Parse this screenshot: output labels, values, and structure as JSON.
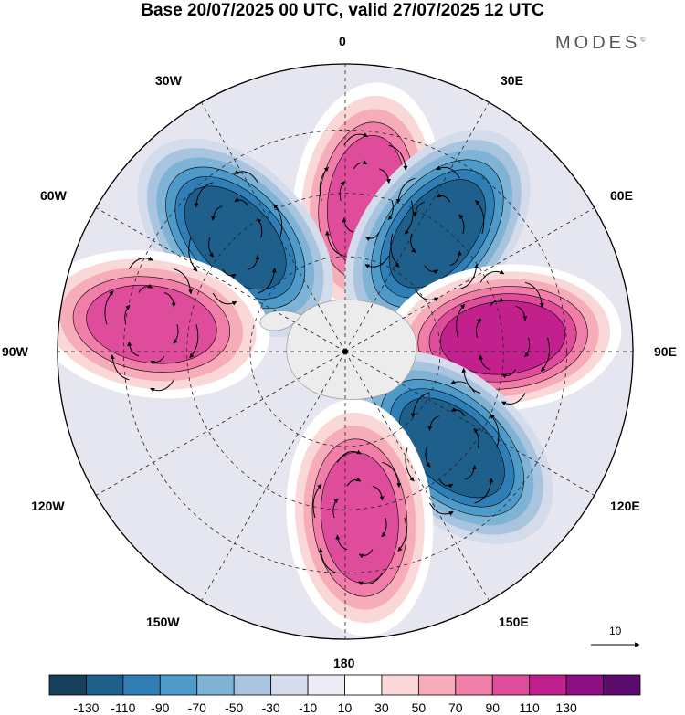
{
  "title": "Base 20/07/2025 00 UTC, valid 27/07/2025 12 UTC",
  "brand": "MODES",
  "brand_mark": "©",
  "longitude_labels": {
    "lon_0": "0",
    "lon_30e": "30E",
    "lon_60e": "60E",
    "lon_90e": "90E",
    "lon_120e": "120E",
    "lon_150e": "150E",
    "lon_180": "180",
    "lon_150w": "150W",
    "lon_120w": "120W",
    "lon_90w": "90W",
    "lon_60w": "60W",
    "lon_30w": "30W"
  },
  "vector_reference": "10",
  "colorbar": {
    "colors": [
      "#163f5c",
      "#1e5f8c",
      "#2f7fb6",
      "#4e9bca",
      "#7fb3d5",
      "#a9c4df",
      "#d4dcec",
      "#ececf4",
      "#ffffff",
      "#fbd8d8",
      "#f6adb9",
      "#f07ea9",
      "#e04c9c",
      "#c2208d",
      "#8e0f84",
      "#5c0a6e"
    ],
    "tick_labels": [
      "-130",
      "-110",
      "-90",
      "-70",
      "-50",
      "-30",
      "-10",
      "10",
      "30",
      "50",
      "70",
      "90",
      "110",
      "130"
    ]
  },
  "anomaly_centers": [
    {
      "name": "pos-center-atlantic",
      "sign": "positive",
      "bearing_deg": 8,
      "radius_frac": 0.53,
      "level": 110
    },
    {
      "name": "neg-center-30e",
      "sign": "negative",
      "bearing_deg": 38,
      "radius_frac": 0.52,
      "level": -130
    },
    {
      "name": "pos-center-90e",
      "sign": "positive",
      "bearing_deg": 85,
      "radius_frac": 0.55,
      "level": 130
    },
    {
      "name": "neg-center-120e",
      "sign": "negative",
      "bearing_deg": 132,
      "radius_frac": 0.5,
      "level": -130
    },
    {
      "name": "pos-center-180",
      "sign": "positive",
      "bearing_deg": 175,
      "radius_frac": 0.58,
      "level": 110
    },
    {
      "name": "neg-center-60w",
      "sign": "negative",
      "bearing_deg": -44,
      "radius_frac": 0.55,
      "level": -130
    },
    {
      "name": "pos-center-90w",
      "sign": "positive",
      "bearing_deg": -82,
      "radius_frac": 0.68,
      "level": 110
    }
  ]
}
